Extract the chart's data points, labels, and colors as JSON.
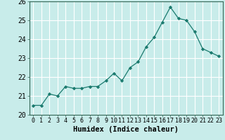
{
  "x": [
    0,
    1,
    2,
    3,
    4,
    5,
    6,
    7,
    8,
    9,
    10,
    11,
    12,
    13,
    14,
    15,
    16,
    17,
    18,
    19,
    20,
    21,
    22,
    23
  ],
  "y": [
    20.5,
    20.5,
    21.1,
    21.0,
    21.5,
    21.4,
    21.4,
    21.5,
    21.5,
    21.8,
    22.2,
    21.8,
    22.5,
    22.8,
    23.6,
    24.1,
    24.9,
    25.7,
    25.1,
    25.0,
    24.4,
    23.5,
    23.3,
    23.1
  ],
  "line_color": "#1a7a6e",
  "marker_color": "#1a7a6e",
  "bg_color": "#c8ecea",
  "grid_color": "#ffffff",
  "xlabel": "Humidex (Indice chaleur)",
  "ylim": [
    20,
    26
  ],
  "xlim_min": -0.5,
  "xlim_max": 23.5,
  "yticks": [
    20,
    21,
    22,
    23,
    24,
    25,
    26
  ],
  "xticks": [
    0,
    1,
    2,
    3,
    4,
    5,
    6,
    7,
    8,
    9,
    10,
    11,
    12,
    13,
    14,
    15,
    16,
    17,
    18,
    19,
    20,
    21,
    22,
    23
  ],
  "xlabel_fontsize": 7.5,
  "ytick_fontsize": 7,
  "xtick_fontsize": 6
}
